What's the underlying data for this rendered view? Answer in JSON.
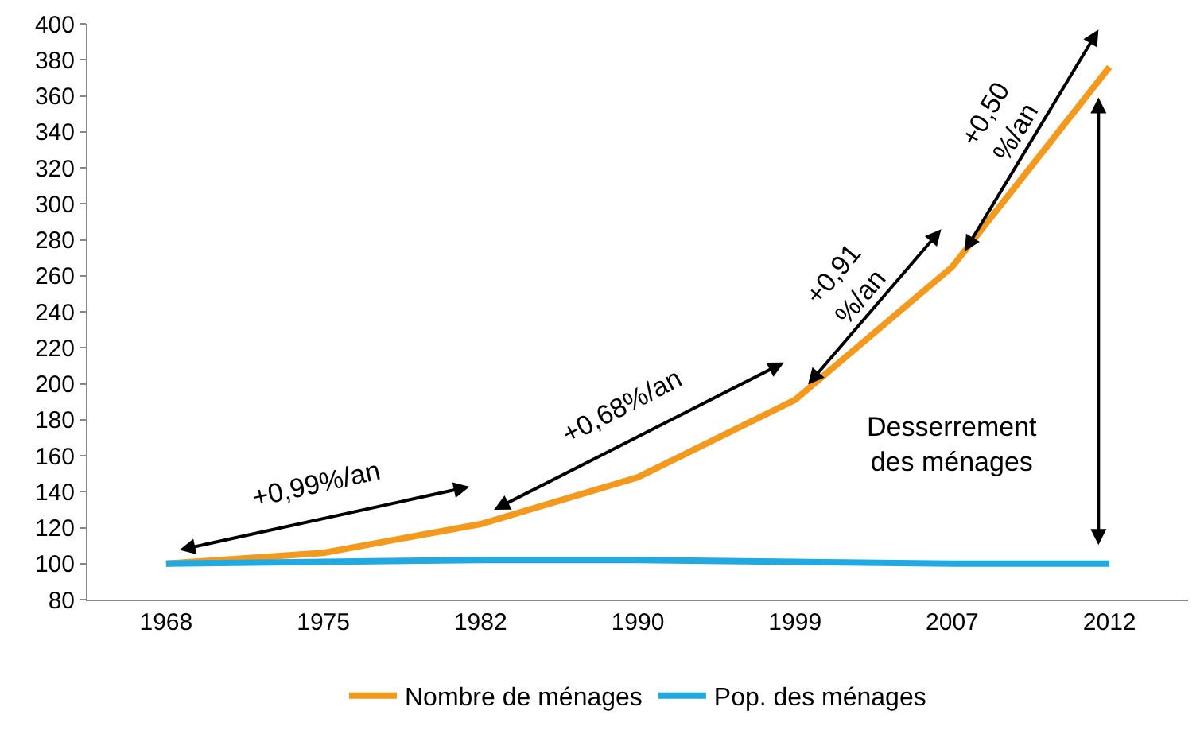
{
  "chart_data": {
    "type": "line",
    "categories": [
      "1968",
      "1975",
      "1982",
      "1990",
      "1999",
      "2007",
      "2012"
    ],
    "series": [
      {
        "name": "Nombre de ménages",
        "color": "#f39a1e",
        "values": [
          100,
          106,
          122,
          148,
          191,
          265,
          376
        ]
      },
      {
        "name": "Pop. des ménages",
        "color": "#21a9e1",
        "values": [
          100,
          101,
          102,
          102,
          101,
          100,
          100
        ]
      }
    ],
    "ylim": [
      80,
      400
    ],
    "yticks": [
      80,
      100,
      120,
      140,
      160,
      180,
      200,
      220,
      240,
      260,
      280,
      300,
      320,
      340,
      360,
      380,
      400
    ],
    "grid": false,
    "legend": "bottom",
    "marker": "none",
    "line_style": "solid",
    "annotations": [
      "+0,99%/an",
      "+0,68%/an",
      "+0,91\n%/an",
      "+0,50\n%/an",
      "Desserrement\ndes ménages"
    ]
  }
}
